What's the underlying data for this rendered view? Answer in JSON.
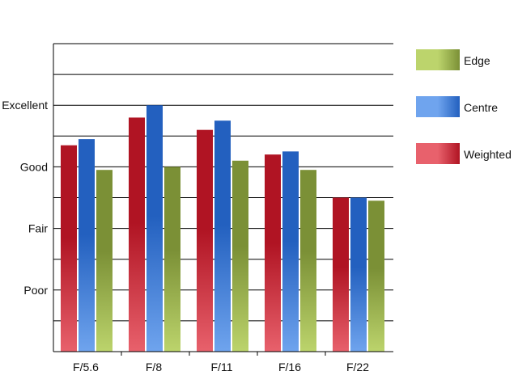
{
  "chart_data": {
    "type": "bar",
    "title": "",
    "xlabel": "",
    "ylabel": "",
    "categories": [
      "F/5.6",
      "F/8",
      "F/11",
      "F/16",
      "F/22"
    ],
    "y_tick_labels": [
      {
        "label": "Poor",
        "value": 2
      },
      {
        "label": "Fair",
        "value": 4
      },
      {
        "label": "Good",
        "value": 6
      },
      {
        "label": "Excellent",
        "value": 8
      }
    ],
    "ylim": [
      0,
      10
    ],
    "grid": true,
    "legend_position": "right",
    "series": [
      {
        "name": "Weighted",
        "values": [
          6.7,
          7.6,
          7.2,
          6.4,
          5.0
        ],
        "color_light": "#e8616c",
        "color_dark": "#b01423"
      },
      {
        "name": "Centre",
        "values": [
          6.9,
          8.0,
          7.5,
          6.5,
          5.0
        ],
        "color_light": "#6fa4ee",
        "color_dark": "#2360bf"
      },
      {
        "name": "Edge",
        "values": [
          5.9,
          6.0,
          6.2,
          5.9,
          4.9
        ],
        "color_light": "#bcd46c",
        "color_dark": "#7b9036"
      }
    ],
    "legend_order": [
      "Edge",
      "Centre",
      "Weighted"
    ]
  }
}
